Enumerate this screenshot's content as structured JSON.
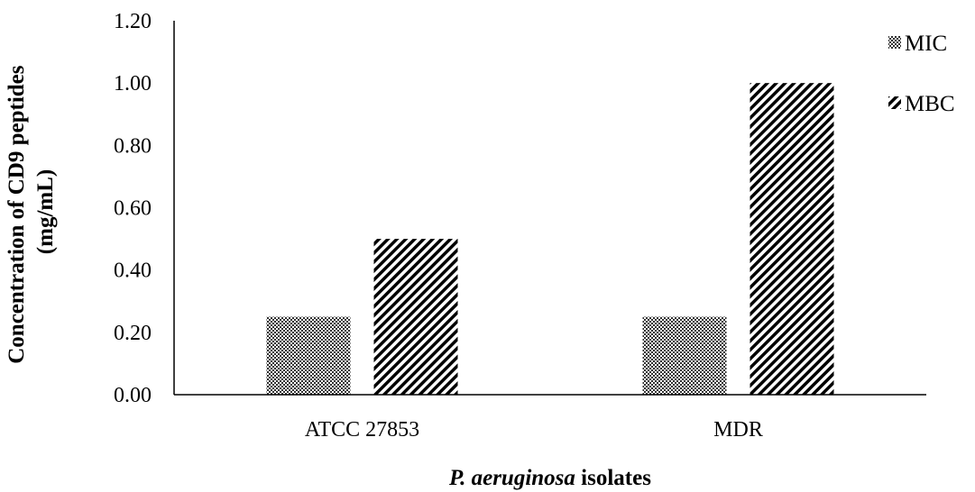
{
  "chart_data": {
    "type": "bar",
    "categories": [
      "ATCC 27853",
      "MDR"
    ],
    "series": [
      {
        "name": "MIC",
        "values": [
          0.25,
          0.25
        ],
        "pattern": "dots"
      },
      {
        "name": "MBC",
        "values": [
          0.5,
          1.0
        ],
        "pattern": "diagonal-stripes"
      }
    ],
    "title": "",
    "xlabel_italic": "P. aeruginosa",
    "xlabel_rest": " isolates",
    "ylabel_line1": "Concentration of CD9 peptides",
    "ylabel_line2": "(mg/mL)",
    "ylim": [
      0,
      1.2
    ],
    "yticks": [
      "0.00",
      "0.20",
      "0.40",
      "0.60",
      "0.80",
      "1.00",
      "1.20"
    ],
    "yticks_values": [
      0,
      0.2,
      0.4,
      0.6,
      0.8,
      1.0,
      1.2
    ],
    "grid": false,
    "legend_placement": "top-right",
    "colors": {
      "bar_fill": "#000000",
      "bar_bg": "#ffffff",
      "axis": "#000000"
    }
  }
}
